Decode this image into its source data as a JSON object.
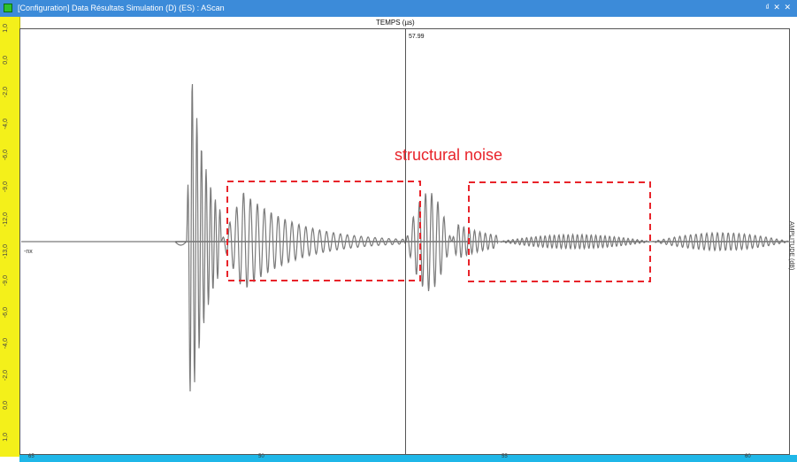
{
  "window": {
    "title": "[Configuration] Data Résultats Simulation (D) (ES) : AScan",
    "controls_label": "₫ ✕ ✕"
  },
  "plot": {
    "x_axis_title": "TEMPS (µs)",
    "cursor_value": "57.99",
    "baseline_label": "-nx",
    "right_axis_label": "AMPLITUDE (dB)",
    "annotation": "structural noise",
    "left_ruler_ticks": [
      "1,0",
      "0,0",
      "-2,0",
      "-4,0",
      "-6,0",
      "-9,0",
      "-12,0",
      "-13,0",
      "-9,0",
      "-6,0",
      "-4,0",
      "-2,0",
      "0,0",
      "1,0"
    ],
    "bottom_ruler_labels": [
      "50",
      "55",
      "60",
      "65"
    ]
  },
  "colors": {
    "title_bg": "#3c8bd9",
    "left_ruler": "#f4f01a",
    "bottom_ruler": "#1fb7e8",
    "signal": "#7a7a7a",
    "annotation": "#e8232a"
  },
  "signal_packets": [
    {
      "start": 0.215,
      "end": 0.26,
      "period": 0.006,
      "amp_peak": 1.0,
      "decay": 2.0
    },
    {
      "start": 0.26,
      "end": 0.5,
      "period": 0.009,
      "amp_peak": 0.28,
      "decay": 3.5
    },
    {
      "start": 0.5,
      "end": 0.56,
      "period": 0.008,
      "amp_peak": 0.28,
      "decay": 0.5
    },
    {
      "start": 0.56,
      "end": 0.62,
      "period": 0.007,
      "amp_peak": 0.1,
      "decay": 1.2
    },
    {
      "start": 0.62,
      "end": 0.82,
      "period": 0.006,
      "amp_peak": 0.04,
      "decay": 0.8
    },
    {
      "start": 0.82,
      "end": 1.0,
      "period": 0.007,
      "amp_peak": 0.05,
      "decay": 0.5
    }
  ]
}
